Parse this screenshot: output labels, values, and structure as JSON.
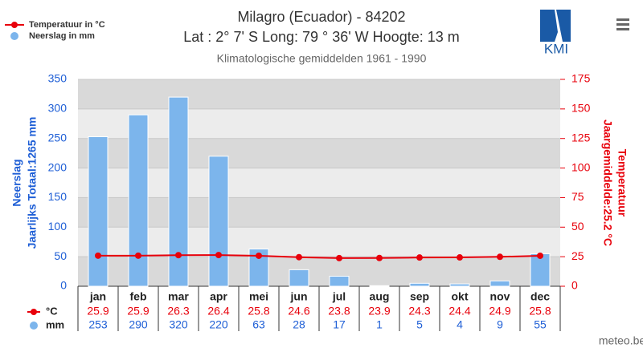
{
  "chart_data": {
    "type": "bar",
    "title": "Milagro (Ecuador) - 84202",
    "subtitle": "Lat : 2° 7' S Long: 79 ° 36' W Hoogte: 13 m",
    "note": "Klimatologische gemiddelden 1961 - 1990",
    "categories": [
      "jan",
      "feb",
      "mar",
      "apr",
      "mei",
      "jun",
      "jul",
      "aug",
      "sep",
      "okt",
      "nov",
      "dec"
    ],
    "series": [
      {
        "name": "Temperatuur in °C",
        "short_name": "°C",
        "type": "line",
        "axis": "y2",
        "color": "#e8000b",
        "values": [
          25.9,
          25.9,
          26.3,
          26.4,
          25.8,
          24.6,
          23.8,
          23.9,
          24.3,
          24.4,
          24.9,
          25.8
        ]
      },
      {
        "name": "Neerslag in mm",
        "short_name": "mm",
        "type": "bar",
        "color": "#7cb5ec",
        "values": [
          253,
          290,
          320,
          220,
          63,
          28,
          17,
          1,
          5,
          4,
          9,
          55
        ]
      }
    ],
    "ylabel": [
      "Neerslag",
      "Jaarlijks Totaal:1265 mm"
    ],
    "y2label": [
      "Temperatuur",
      "Jaargemiddelde:25.2 °C"
    ],
    "ylim": [
      0,
      350
    ],
    "yticks": [
      0,
      50,
      100,
      150,
      200,
      250,
      300,
      350
    ],
    "y2lim": [
      0,
      175
    ],
    "y2ticks": [
      0,
      25,
      50,
      75,
      100,
      125,
      150,
      175
    ],
    "logo": "KMI",
    "credit": "meteo.be"
  }
}
